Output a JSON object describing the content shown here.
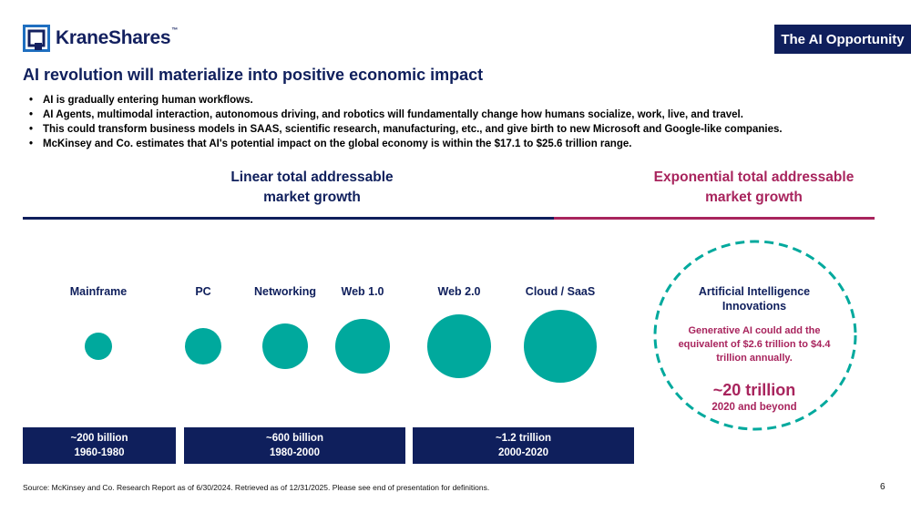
{
  "brand": {
    "name": "KraneShares",
    "trademark": "™",
    "accent_navy": "#0f1f5c",
    "accent_teal": "#00a99d",
    "accent_magenta": "#a8245d"
  },
  "tag": "The AI Opportunity",
  "headline": "AI revolution will materialize into positive economic impact",
  "bullets": [
    "AI is gradually entering human workflows.",
    "AI Agents, multimodal interaction, autonomous driving, and robotics will fundamentally change how humans socialize, work, live, and travel.",
    "This could transform business models in SAAS, scientific research, manufacturing, etc., and give birth to new Microsoft and Google-like companies.",
    "McKinsey and Co. estimates that AI's potential impact on the global economy is within the $17.1 to $25.6 trillion range."
  ],
  "linear": {
    "title_line1": "Linear total addressable",
    "title_line2": "market growth"
  },
  "exponential": {
    "title_line1": "Exponential total addressable",
    "title_line2": "market growth"
  },
  "eras": [
    {
      "label": "Mainframe"
    },
    {
      "label": "PC"
    },
    {
      "label": "Networking"
    },
    {
      "label": "Web 1.0"
    },
    {
      "label": "Web 2.0"
    },
    {
      "label": "Cloud / SaaS"
    }
  ],
  "periods": [
    {
      "value": "~200 billion",
      "years": "1960-1980"
    },
    {
      "value": "~600 billion",
      "years": "1980-2000"
    },
    {
      "value": "~1.2 trillion",
      "years": "2000-2020"
    }
  ],
  "ai": {
    "title_line1": "Artificial Intelligence",
    "title_line2": "Innovations",
    "desc_line1": "Generative AI could add the",
    "desc_line2": "equivalent of $2.6 trillion to $4.4",
    "desc_line3": "trillion annually.",
    "value": "~20 trillion",
    "period": "2020 and beyond"
  },
  "footer": "Source: McKinsey and Co. Research Report as of 6/30/2024. Retrieved as of 12/31/2025. Please see end of presentation for definitions.",
  "page_number": "6"
}
